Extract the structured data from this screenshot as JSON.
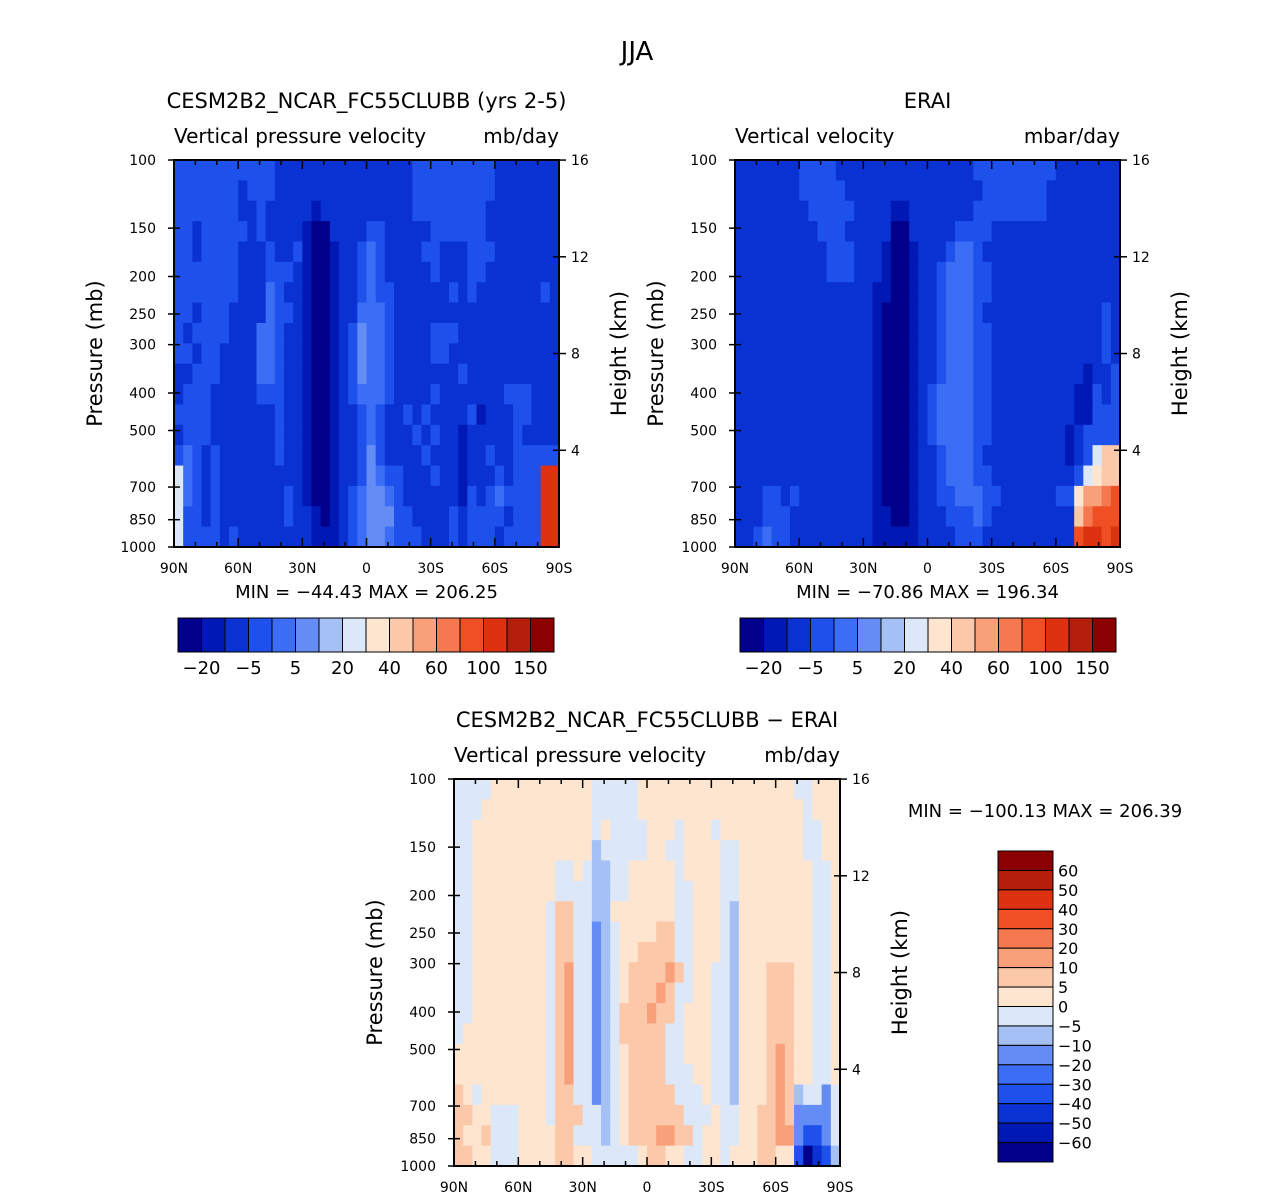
{
  "figure_title": "JJA",
  "chart_data": [
    {
      "type": "heatmap",
      "title": "CESM2B2_NCAR_FC55CLUBB (yrs 2-5)",
      "subtitle_left": "Vertical pressure velocity",
      "subtitle_right": "mb/day",
      "ylabel": "Pressure (mb)",
      "ylabel_right": "Height (km)",
      "x_ticks": [
        "90N",
        "60N",
        "30N",
        "0",
        "30S",
        "60S",
        "90S"
      ],
      "y_ticks": [
        "100",
        "150",
        "200",
        "250",
        "300",
        "400",
        "500",
        "700",
        "850",
        "1000"
      ],
      "y_right_ticks": [
        "16",
        "12",
        "8",
        "4"
      ],
      "stats": "MIN = −44.43   MAX = 206.25",
      "min": -44.43,
      "max": 206.25,
      "colorbar_labels": [
        "−20",
        "−5",
        "5",
        "20",
        "40",
        "60",
        "100",
        "150"
      ],
      "colorbar_colors": [
        "#00008b",
        "#0019b4",
        "#0a32d2",
        "#1e50eb",
        "#3c6ef5",
        "#648cf5",
        "#a5c0f5",
        "#dce8f8",
        "#fde5d0",
        "#fbc8aa",
        "#f8a07a",
        "#f57850",
        "#f04f25",
        "#dc3212",
        "#b41e0a",
        "#8b0000"
      ],
      "cells": [
        "dddddddddddcccccccccccccccdddddddddccccccc",
        "dddddddcdddcccccccccccccccdddddddddccccccc",
        "dddddddccdcccccbccccccccccddddddddcccccccc",
        "ddcdddddcdccccbaaccccddcccccddddddcccccccc",
        "ddcddddcccdccdbaabccdedccccddcccdddccccccc",
        "dddddddcccdddcbaabccdedcccccdcccddcccccccc",
        "dddddddcccedccbaabccdeddccccccdcdcccccccdc",
        "ddcdddcccceddcbaabcceeedcccccccccccccccccc",
        "dcddddccceedccbaabcdfeedccccdddccccccccccc",
        "ddcddcccceedccbaabcdfeedccccddcccccccccccc",
        "ccdddcccceedccbaabcdfeedcccccccdcccccccccc",
        "cdddcccccdddccbaabcdeeedccccdcccccccdddccc",
        "ddddcccccccdccbaabccdedccdcdccccdbcccddccc",
        "cdddcccccccdccbaabccdedcccdcdccbcccccdcccc",
        "dedcdccccccdccbaabccdfdccccdcccbccdccddddd",
        "hedcdcccccccccbaabccdfeddcccdccbcccdcdddnn",
        "hedcdcccccccdcbaabcdeffedccccccbdcdeddddnn",
        "hddcdcccccccdccbabcdefffddccccdcddddcdddnn",
        "hddddcdccccccccbbbcdeffedddcccdcdddcddddnn"
      ]
    },
    {
      "type": "heatmap",
      "title": "ERAI",
      "subtitle_left": "Vertical velocity",
      "subtitle_right": "mbar/day",
      "ylabel": "Pressure (mb)",
      "ylabel_right": "Height (km)",
      "x_ticks": [
        "90N",
        "60N",
        "30N",
        "0",
        "30S",
        "60S",
        "90S"
      ],
      "y_ticks": [
        "100",
        "150",
        "200",
        "250",
        "300",
        "400",
        "500",
        "700",
        "850",
        "1000"
      ],
      "y_right_ticks": [
        "16",
        "12",
        "8",
        "4"
      ],
      "stats": "MIN = −70.86   MAX = 196.34",
      "min": -70.86,
      "max": 196.34,
      "colorbar_labels": [
        "−20",
        "−5",
        "5",
        "20",
        "40",
        "60",
        "100",
        "150"
      ],
      "colorbar_colors": [
        "#00008b",
        "#0019b4",
        "#0a32d2",
        "#1e50eb",
        "#3c6ef5",
        "#648cf5",
        "#a5c0f5",
        "#dce8f8",
        "#fde5d0",
        "#fbc8aa",
        "#f8a07a",
        "#f57850",
        "#f04f25",
        "#dc3212",
        "#b41e0a",
        "#8b0000"
      ],
      "cells": [
        "cccccccddddcccccccccccccccdddddddddccccccc",
        "cccccccdddddcccccccccccccccdddddddcccccccc",
        "ccccccccdddddccccbbcccccccddddddddcccccccc",
        "cccccccccdddcccccaacccccddddcccccccccccccc",
        "ccccccccccdddcccbaabcccdeedccccccccccccccc",
        "ccccccccccdddcccbaabccdeeeddcccccccccccccc",
        "cccccccccccccccbbaabccdeeeddcccccccccccccc",
        "cccccccccccccccbaaabccdeeedcccccccccccccdc",
        "cccccccccccccccbaaabccdeeeddccccccccccccdc",
        "cccccccccccccccbaaabccdeeeddccccccccccccdc",
        "cccccccccccccccbaaabccdeeeddccccccccccbccd",
        "cccccccccccccccbaaabcdeeeeddcccccccccbbdcd",
        "cccccccccccccccbaaabcdeeeeddcccccccccbbddd",
        "cccccccccccccccbaaabcdeeeeddccccccccbcdddd",
        "cccccccccccccccbaaabccdeeedcccccccccbcdhjj",
        "cccccccccccccccbaaabccdeeeddcccccccccdhijj",
        "cccddcdccccccccbaaabccddeeeddccccccddikklm",
        "cccdddcccccccccbbaabcccdddedcccccccccjlmmm",
        "ccdeddcccccccccbbbbbccccdddccccccccccmnnmn"
      ]
    },
    {
      "type": "heatmap",
      "title": "CESM2B2_NCAR_FC55CLUBB − ERAI",
      "subtitle_left": "Vertical pressure velocity",
      "subtitle_right": "mb/day",
      "ylabel": "Pressure (mb)",
      "ylabel_right": "Height (km)",
      "x_ticks": [
        "90N",
        "60N",
        "30N",
        "0",
        "30S",
        "60S",
        "90S"
      ],
      "y_ticks": [
        "100",
        "150",
        "200",
        "250",
        "300",
        "400",
        "500",
        "700",
        "850",
        "1000"
      ],
      "y_right_ticks": [
        "16",
        "12",
        "8",
        "4"
      ],
      "stats": "MIN = −100.13   MAX = 206.39",
      "min": -100.13,
      "max": 206.39,
      "colorbar_labels": [
        "60",
        "50",
        "40",
        "30",
        "20",
        "10",
        "5",
        "0",
        "−5",
        "−10",
        "−20",
        "−30",
        "−40",
        "−50",
        "−60"
      ],
      "colorbar_colors": [
        "#8b0000",
        "#b41e0a",
        "#dc3212",
        "#f04f25",
        "#f57850",
        "#f8a07a",
        "#fbc8aa",
        "#fde5d0",
        "#dce8f8",
        "#a5c0f5",
        "#648cf5",
        "#3c6ef5",
        "#1e50eb",
        "#0a32d2",
        "#0019b4",
        "#00008b"
      ],
      "cells": [
        "iiiihhhhhhhhhhhiiiiihhhhhhhhhhhhhhhhhiihhh",
        "iiihhhhhhhhhhhhiiiiihhhhhhhhhhhhhhhhhhihhh",
        "iihhhhhhhhhhhhhihiiiihhhihhhihhhhhhhhhiihh",
        "iihhhhhhhhhhhhhjiiiiihhiihhhhiihhhhhhhiihh",
        "iihhhhhhhhhiihijjiihhhhhihhhhiihhhhhhhhiih",
        "iihhhhhhhhhiiiijjiihhhhhiihhhiihhhhhhhhiih",
        "iihhhhhhhhiggiijjhhhhhhhiihhhijhhhhhhhhiih",
        "iihhhhhhhhiggiikjihhhhggiihhhijhhhhhhhhiih",
        "iihhhhhhhhiggiikjihhggggiihhhijhhhhhhhhiih",
        "iihhhhhhhhigfiikjihggggfgihhiijhhhggghhiih",
        "iihhhhhhhhigfiikjihgggfgiihhiijhhhggghhiih",
        "iihhhhhhhhigfiikjigggfggihhhiijhhhggghhiih",
        "ihhhhhhhhhigfiikjigggggiihhhiijhhhggghhiih",
        "hhhhhhhhhhigfiikjihggggiihhhiijhhhgfghhiih",
        "hhhhhhhhhhigfiikjihggggiiihhiijhhhgfghhiih",
        "ghihhhhhhhiggiikjihgggggiiihiijhhhgfgjiiki",
        "gghhiiihhhigggiijihggggggiiihiihhggfgkkkki",
        "ghhgiiihhhhggiiijihgggffggihhiihhggffkmmki",
        "gghhiiihhhhgghhiiiiihgghhiihhihhhgghhmpnmj"
      ]
    }
  ]
}
